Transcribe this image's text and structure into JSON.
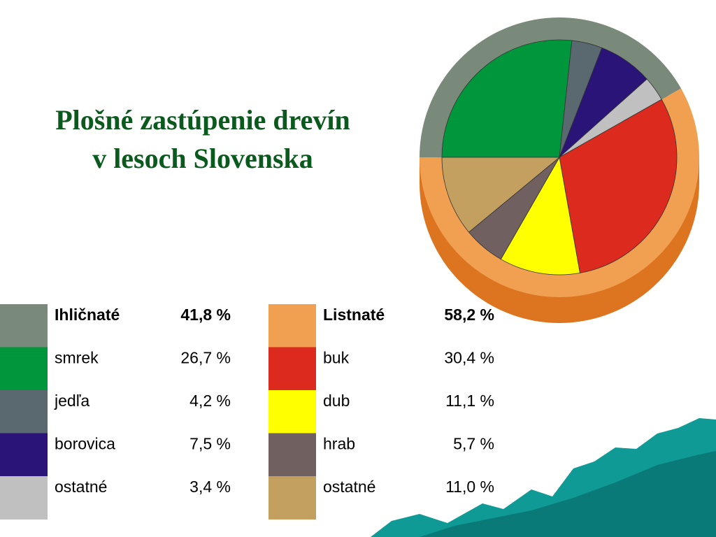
{
  "chart_data": {
    "type": "pie",
    "title": [
      "Plošné zastúpenie drevín",
      "v lesoch Slovenska"
    ],
    "series": [
      {
        "name": "Ihličnaté",
        "color": "#7a8a7a",
        "value": 41.8,
        "value_label": "41,8 %",
        "items": [
          {
            "name": "smrek",
            "color": "#00963c",
            "value": 26.7,
            "value_label": "26,7 %"
          },
          {
            "name": "jedľa",
            "color": "#5a6870",
            "value": 4.2,
            "value_label": "4,2 %"
          },
          {
            "name": "borovica",
            "color": "#2a1478",
            "value": 7.5,
            "value_label": "7,5 %"
          },
          {
            "name": "ostatné",
            "color": "#c0c0c0",
            "value": 3.4,
            "value_label": "3,4 %"
          }
        ]
      },
      {
        "name": "Listnaté",
        "color": "#f0a050",
        "value": 58.2,
        "value_label": "58,2 %",
        "items": [
          {
            "name": "buk",
            "color": "#dc2a1e",
            "value": 30.4,
            "value_label": "30,4 %"
          },
          {
            "name": "dub",
            "color": "#ffff00",
            "value": 11.1,
            "value_label": "11,1 %"
          },
          {
            "name": "hrab",
            "color": "#706060",
            "value": 5.7,
            "value_label": "5,7 %"
          },
          {
            "name": "ostatné",
            "color": "#c4a060",
            "value": 11.0,
            "value_label": "11,0 %"
          }
        ]
      }
    ]
  }
}
